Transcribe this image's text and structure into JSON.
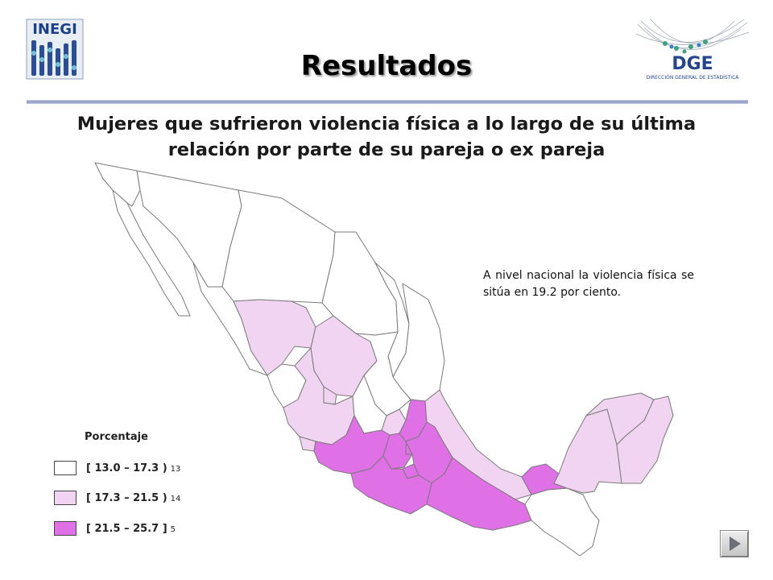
{
  "header": {
    "logo_left": "INEGI",
    "logo_right": "DGE",
    "logo_right_caption": "DIRECCIÓN GENERAL DE ESTADÍSTICA",
    "title": "Resultados"
  },
  "subtitle": "Mujeres que sufrieron violencia física a lo largo de su última relación por parte de su pareja o ex pareja",
  "note": "A nivel nacional la violencia física se sitúa en 19.2 por ciento.",
  "legend": {
    "title": "Porcentaje",
    "items": [
      {
        "range": "[ 13.0 – 17.3 )",
        "count": "13",
        "color": "#ffffff"
      },
      {
        "range": "[ 17.3 – 21.5 )",
        "count": "14",
        "color": "#f1d4f1"
      },
      {
        "range": "[ 21.5 – 25.7 ]",
        "count": "5",
        "color": "#e070e6"
      }
    ]
  },
  "map_colors": {
    "low": "#ffffff",
    "mid": "#f1d4f1",
    "high": "#e070e6",
    "border": "#7a7a7a"
  },
  "icons": {
    "next": "play-right-icon"
  }
}
